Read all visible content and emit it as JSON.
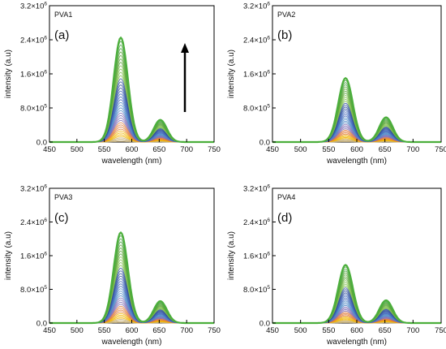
{
  "figure": {
    "panels": [
      {
        "name": "PVA1",
        "letter": "(a)"
      },
      {
        "name": "PVA2",
        "letter": "(b)"
      },
      {
        "name": "PVA3",
        "letter": "(c)"
      },
      {
        "name": "PVA4",
        "letter": "(d)"
      }
    ]
  },
  "chart_data": [
    {
      "type": "line",
      "panel_label": "PVA1",
      "letter": "(a)",
      "xlabel": "wavelength (nm)",
      "ylabel": "intensity (a.u)",
      "xlim": [
        450,
        750
      ],
      "ylim": [
        0,
        3200000
      ],
      "xticks": [
        "450",
        "500",
        "550",
        "600",
        "650",
        "700",
        "750"
      ],
      "yticks": [
        {
          "base": "0.0",
          "exp": ""
        },
        {
          "base": "8.0×10",
          "exp": "5"
        },
        {
          "base": "1.6×10",
          "exp": "6"
        },
        {
          "base": "2.4×10",
          "exp": "6"
        },
        {
          "base": "3.2×10",
          "exp": "6"
        }
      ],
      "peaks_nm": [
        580,
        652
      ],
      "max_peak_intensity": [
        2450000,
        520000
      ],
      "series_count": 40,
      "annotation": "arrow pointing up (increasing intensity)",
      "grid": false
    },
    {
      "type": "line",
      "panel_label": "PVA2",
      "letter": "(b)",
      "xlabel": "wavelength (nm)",
      "ylabel": "intensity (a.u)",
      "xlim": [
        450,
        750
      ],
      "ylim": [
        0,
        3200000
      ],
      "xticks": [
        "450",
        "500",
        "550",
        "600",
        "650",
        "700",
        "750"
      ],
      "yticks": [
        {
          "base": "0.0",
          "exp": ""
        },
        {
          "base": "8.0×10",
          "exp": "5"
        },
        {
          "base": "1.6×10",
          "exp": "6"
        },
        {
          "base": "2.4×10",
          "exp": "6"
        },
        {
          "base": "3.2×10",
          "exp": "6"
        }
      ],
      "peaks_nm": [
        580,
        652
      ],
      "max_peak_intensity": [
        1500000,
        580000
      ],
      "series_count": 40,
      "grid": false
    },
    {
      "type": "line",
      "panel_label": "PVA3",
      "letter": "(c)",
      "xlabel": "wavelength (nm)",
      "ylabel": "intensity (a.u)",
      "xlim": [
        450,
        750
      ],
      "ylim": [
        0,
        3200000
      ],
      "xticks": [
        "450",
        "500",
        "550",
        "600",
        "650",
        "700",
        "750"
      ],
      "yticks": [
        {
          "base": "0.0",
          "exp": ""
        },
        {
          "base": "8.0×10",
          "exp": "5"
        },
        {
          "base": "1.6×10",
          "exp": "6"
        },
        {
          "base": "2.4×10",
          "exp": "6"
        },
        {
          "base": "3.2×10",
          "exp": "6"
        }
      ],
      "peaks_nm": [
        580,
        652
      ],
      "max_peak_intensity": [
        2150000,
        520000
      ],
      "series_count": 40,
      "grid": false
    },
    {
      "type": "line",
      "panel_label": "PVA4",
      "letter": "(d)",
      "xlabel": "wavelength (nm)",
      "ylabel": "intensity (a.u)",
      "xlim": [
        450,
        750
      ],
      "ylim": [
        0,
        3200000
      ],
      "xticks": [
        "450",
        "500",
        "550",
        "600",
        "650",
        "700",
        "750"
      ],
      "yticks": [
        {
          "base": "0.0",
          "exp": ""
        },
        {
          "base": "8.0×10",
          "exp": "5"
        },
        {
          "base": "1.6×10",
          "exp": "6"
        },
        {
          "base": "2.4×10",
          "exp": "6"
        },
        {
          "base": "3.2×10",
          "exp": "6"
        }
      ],
      "peaks_nm": [
        580,
        652
      ],
      "max_peak_intensity": [
        1380000,
        540000
      ],
      "series_count": 40,
      "grid": false
    }
  ],
  "colors": {
    "series_palette": [
      "#c8b27a",
      "#f0b400",
      "#e07b39",
      "#7d6bb5",
      "#4a86c5",
      "#3c64b8",
      "#2f4f9c",
      "#7dbd4a",
      "#5aa63a",
      "#45a23c"
    ],
    "top_curve": "#4caf3c",
    "axis": "#000000",
    "arrow": "#000000"
  }
}
